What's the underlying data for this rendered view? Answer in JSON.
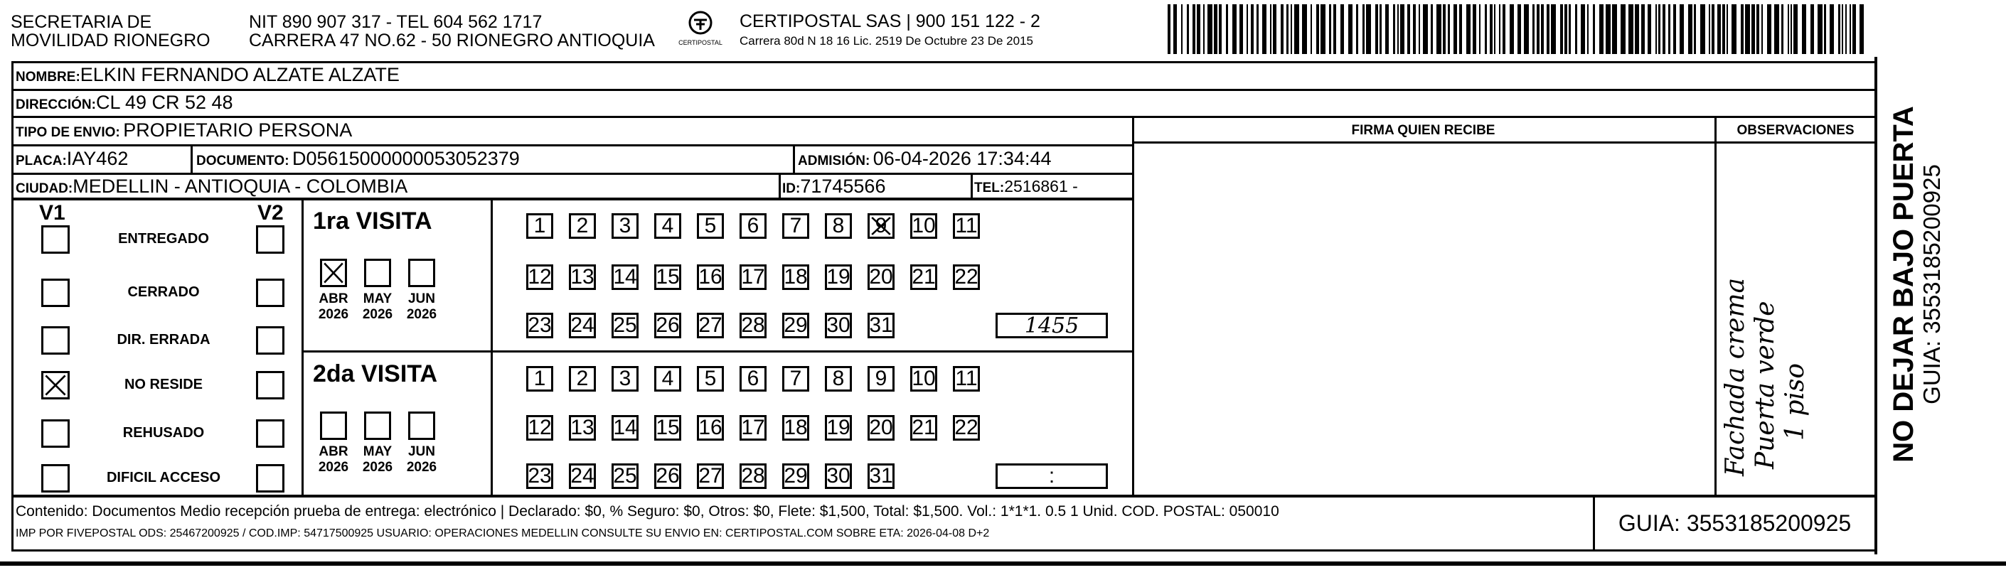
{
  "header": {
    "org_line1": "SECRETARIA  DE",
    "org_line2": "MOVILIDAD RIONEGRO",
    "nit_line": "NIT 890 907 317 - TEL 604 562 1717",
    "address_line": "CARRERA 47 NO.62 - 50 RIONEGRO ANTIOQUIA",
    "logo_text": "CERTIPOSTAL",
    "courier_line": "CERTIPOSTAL SAS | 900 151 122 - 2",
    "courier_address": "Carrera 80d N 18 16  Lic. 2519 De Octubre 23 De 2015",
    "barcode_value": "3553185200925"
  },
  "recipient": {
    "nombre_label": "NOMBRE:",
    "nombre": "ELKIN FERNANDO ALZATE ALZATE",
    "direccion_label": "DIRECCIÓN:",
    "direccion": "CL 49 CR 52 48",
    "tipo_label": "TIPO DE ENVIO:",
    "tipo": "PROPIETARIO PERSONA",
    "placa_label": "PLACA:",
    "placa": "IAY462",
    "documento_label": "DOCUMENTO:",
    "documento": "D05615000000053052379",
    "admision_label": "ADMISIÓN:",
    "admision": "06-04-2026 17:34:44",
    "ciudad_label": "CIUDAD:",
    "ciudad": "MEDELLIN - ANTIOQUIA - COLOMBIA",
    "id_label": "ID:",
    "id": "71745566",
    "tel_label": "TEL:",
    "tel": "2516861 -"
  },
  "firma_header": "FIRMA QUIEN RECIBE",
  "observaciones": {
    "header": "OBSERVACIONES",
    "handwritten": [
      "Fachada crema",
      "Puerta verde",
      "1 piso"
    ]
  },
  "side": {
    "warning": "NO DEJAR BAJO PUERTA",
    "guia": "GUIA: 3553185200925"
  },
  "status": {
    "v1_label": "V1",
    "v2_label": "V2",
    "items": [
      {
        "label": "ENTREGADO",
        "v1": false,
        "v2": false
      },
      {
        "label": "CERRADO",
        "v1": false,
        "v2": false
      },
      {
        "label": "DIR. ERRADA",
        "v1": false,
        "v2": false
      },
      {
        "label": "NO RESIDE",
        "v1": true,
        "v2": false
      },
      {
        "label": "REHUSADO",
        "v1": false,
        "v2": false
      },
      {
        "label": "DIFICIL ACCESO",
        "v1": false,
        "v2": false
      }
    ]
  },
  "visits": [
    {
      "title": "1ra VISITA",
      "months": [
        {
          "month": "ABR",
          "year": "2026",
          "checked": true
        },
        {
          "month": "MAY",
          "year": "2026",
          "checked": false
        },
        {
          "month": "JUN",
          "year": "2026",
          "checked": false
        }
      ],
      "marked_day": 9,
      "time": "1455"
    },
    {
      "title": "2da VISITA",
      "months": [
        {
          "month": "ABR",
          "year": "2026",
          "checked": false
        },
        {
          "month": "MAY",
          "year": "2026",
          "checked": false
        },
        {
          "month": "JUN",
          "year": "2026",
          "checked": false
        }
      ],
      "marked_day": null,
      "time": ":"
    }
  ],
  "footer": {
    "contenido": "Contenido: Documentos Medio recepción prueba de entrega: electrónico | Declarado: $0, % Seguro: $0, Otros: $0, Flete: $1,500, Total: $1,500. Vol.: 1*1*1. 0.5  1 Unid. COD. POSTAL: 050010",
    "imp_line": "IMP POR FIVEPOSTAL ODS: 25467200925 / COD.IMP: 54717500925 USUARIO: OPERACIONES MEDELLIN CONSULTE SU ENVIO EN: CERTIPOSTAL.COM SOBRE ETA: 2026-04-08 D+2",
    "guia": "GUIA: 3553185200925"
  }
}
